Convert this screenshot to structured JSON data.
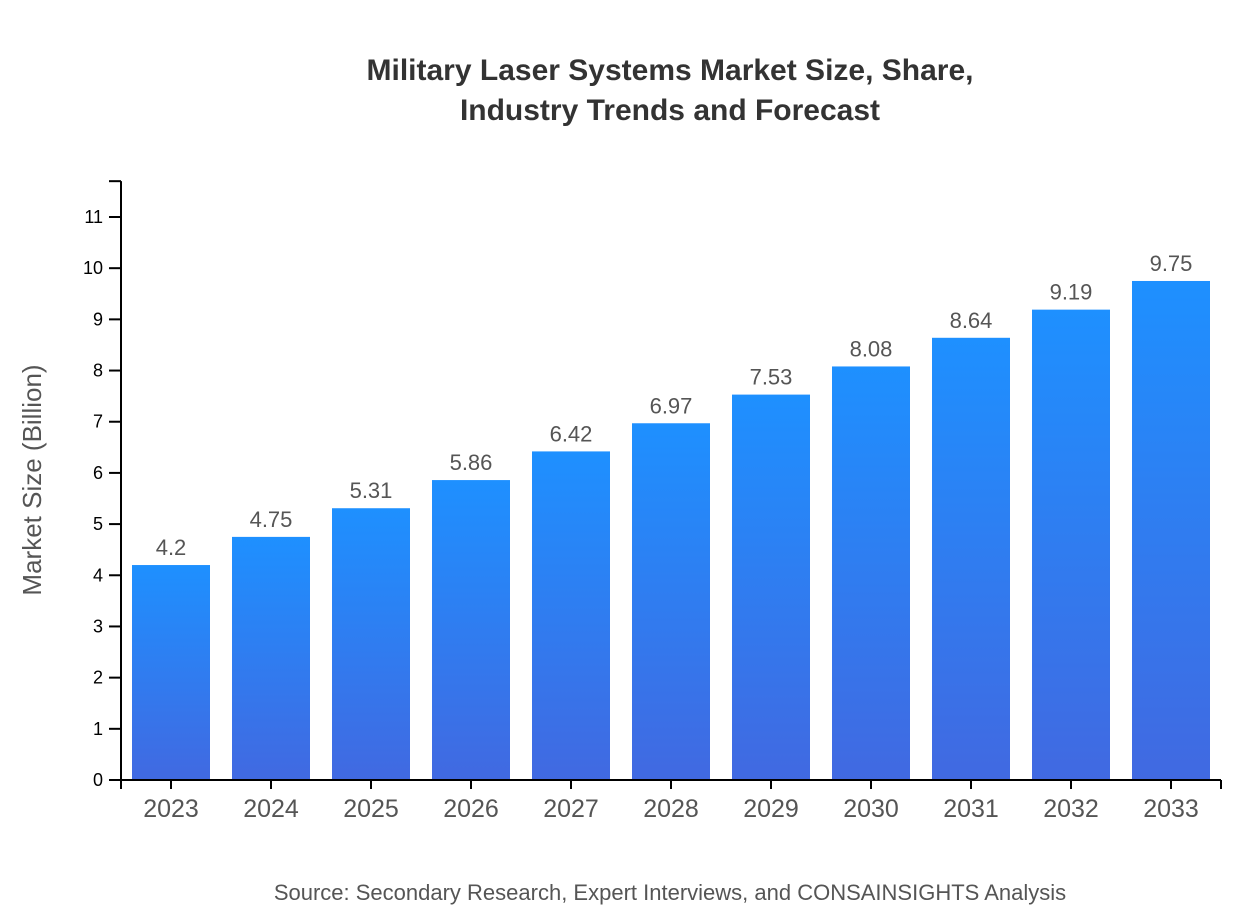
{
  "chart_data": {
    "type": "bar",
    "title_lines": [
      "Military Laser Systems Market Size, Share,",
      "Industry Trends and Forecast"
    ],
    "xlabel": "",
    "ylabel": "Market Size (Billion)",
    "categories": [
      "2023",
      "2024",
      "2025",
      "2026",
      "2027",
      "2028",
      "2029",
      "2030",
      "2031",
      "2032",
      "2033"
    ],
    "values": [
      4.2,
      4.75,
      5.31,
      5.86,
      6.42,
      6.97,
      7.53,
      8.08,
      8.64,
      9.19,
      9.75
    ],
    "data_labels": [
      "4.2",
      "4.75",
      "5.31",
      "5.86",
      "6.42",
      "6.97",
      "7.53",
      "8.08",
      "8.64",
      "9.19",
      "9.75"
    ],
    "ylim": [
      0,
      11.7
    ],
    "yticks": [
      0,
      1,
      2,
      3,
      4,
      5,
      6,
      7,
      8,
      9,
      10,
      11
    ],
    "grid": false,
    "colors": {
      "bar_top": "#1e90ff",
      "bar_bottom": "#4169e1",
      "label": "#555555",
      "axis": "#000000",
      "title": "#333333"
    },
    "source": "Source: Secondary Research, Expert Interviews, and CONSAINSIGHTS Analysis"
  }
}
